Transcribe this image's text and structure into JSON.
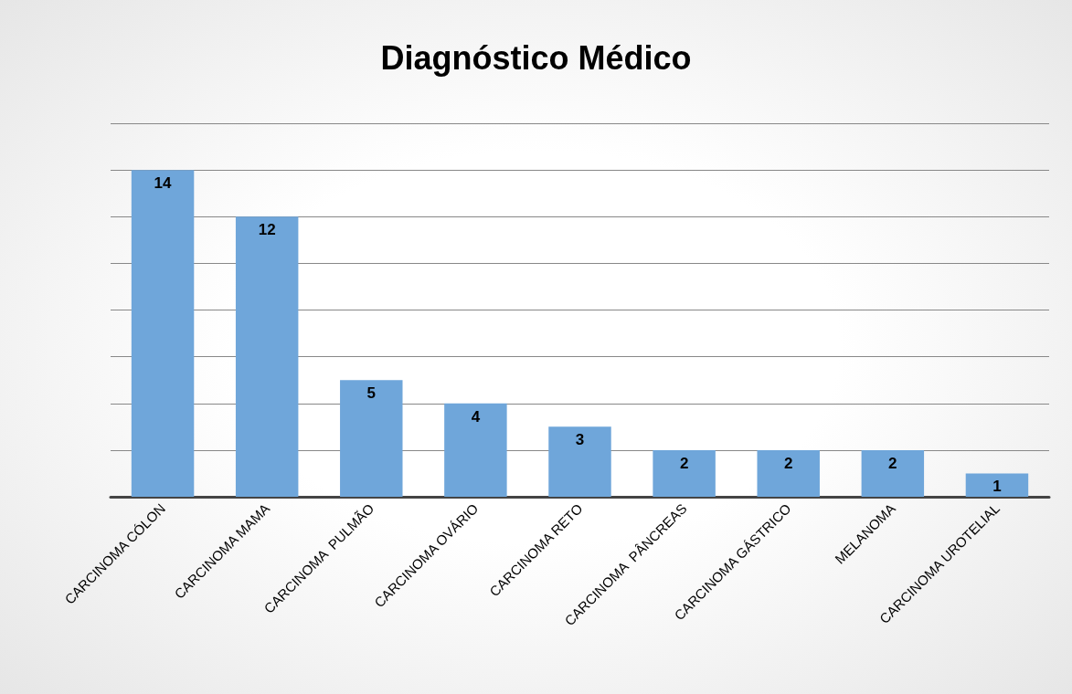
{
  "chart_data": {
    "type": "bar",
    "title": "Diagnóstico Médico",
    "categories": [
      "CARCINOMA CÓLON",
      "CARCINOMA MAMA",
      "CARCINOMA  PULMÃO",
      "CARCINOMA OVÁRIO",
      "CARCINOMA RETO",
      "CARCINOMA  PÂNCREAS",
      "CARCINOMA GÁSTRICO",
      "MELANOMA",
      "CARCINOMA UROTELIAL"
    ],
    "values": [
      14,
      12,
      5,
      4,
      3,
      2,
      2,
      2,
      1
    ],
    "color": "#6fa6da",
    "ylim": [
      0,
      16
    ],
    "yticks": [
      {
        "value": 0,
        "label": null
      },
      {
        "value": 2,
        "label": null
      },
      {
        "value": 4,
        "label": null
      },
      {
        "value": 6,
        "label": null
      },
      {
        "value": 8,
        "label": null
      },
      {
        "value": 10,
        "label": null
      },
      {
        "value": 12,
        "label": null
      },
      {
        "value": 14,
        "label": null
      },
      {
        "value": 16,
        "label": null
      }
    ],
    "tick_labels": "x",
    "grid": "y",
    "data_labels": true
  }
}
